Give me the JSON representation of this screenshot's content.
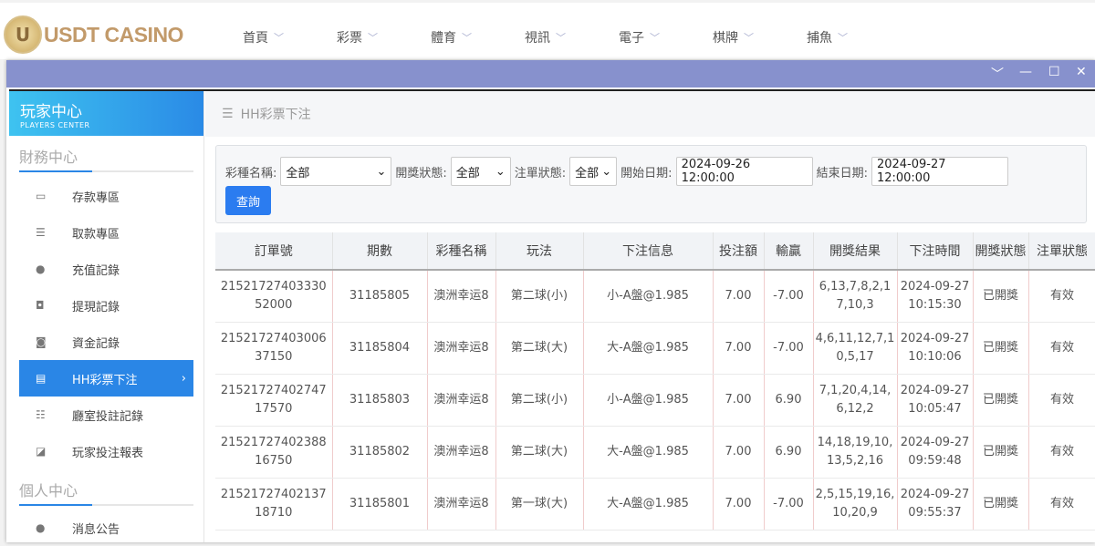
{
  "header": {
    "logo_text": "USDT CASINO",
    "nav": [
      "首頁",
      "彩票",
      "體育",
      "視訊",
      "電子",
      "棋牌",
      "捕魚"
    ]
  },
  "window": {
    "controls": [
      "chevron-down",
      "minimize",
      "maximize",
      "close"
    ]
  },
  "sidebar": {
    "title": "玩家中心",
    "subtitle": "PLAYERS CENTER",
    "section1": "財務中心",
    "items": [
      {
        "label": "存款專區",
        "icon": "card-icon"
      },
      {
        "label": "取款專區",
        "icon": "hand-money-icon"
      },
      {
        "label": "充值記錄",
        "icon": "money-bag-icon"
      },
      {
        "label": "提現記錄",
        "icon": "wallet-icon"
      },
      {
        "label": "資金記錄",
        "icon": "piggy-icon"
      },
      {
        "label": "HH彩票下注",
        "icon": "list-icon",
        "active": true
      },
      {
        "label": "廳室投註記錄",
        "icon": "bullet-list-icon"
      },
      {
        "label": "玩家投注報表",
        "icon": "chart-icon"
      }
    ],
    "section2": "個人中心",
    "items2": [
      {
        "label": "消息公告",
        "icon": "user-icon"
      }
    ]
  },
  "breadcrumb": "HH彩票下注",
  "filter": {
    "lottery_label": "彩種名稱:",
    "lottery_value": "全部",
    "draw_label": "開獎狀態:",
    "draw_value": "全部",
    "bet_label": "注單狀態:",
    "bet_value": "全部",
    "start_label": "開始日期:",
    "start_value": "2024-09-26 12:00:00",
    "end_label": "結束日期:",
    "end_value": "2024-09-27 12:00:00",
    "query": "查詢"
  },
  "table": {
    "headers": [
      "訂單號",
      "期數",
      "彩種名稱",
      "玩法",
      "下注信息",
      "投注額",
      "輸贏",
      "開獎結果",
      "下注時間",
      "開獎狀態",
      "注單狀態"
    ],
    "rows": [
      [
        "2152172740333052000",
        "31185805",
        "澳洲幸运8",
        "第二球(小)",
        "小-A盤@1.985",
        "7.00",
        "-7.00",
        "6,13,7,8,2,17,10,3",
        "2024-09-27 10:15:30",
        "已開獎",
        "有效"
      ],
      [
        "2152172740300637150",
        "31185804",
        "澳洲幸运8",
        "第二球(大)",
        "大-A盤@1.985",
        "7.00",
        "-7.00",
        "4,6,11,12,7,10,5,17",
        "2024-09-27 10:10:06",
        "已開獎",
        "有效"
      ],
      [
        "2152172740274717570",
        "31185803",
        "澳洲幸运8",
        "第二球(小)",
        "小-A盤@1.985",
        "7.00",
        "6.90",
        "7,1,20,4,14,6,12,2",
        "2024-09-27 10:05:47",
        "已開獎",
        "有效"
      ],
      [
        "2152172740238816750",
        "31185802",
        "澳洲幸运8",
        "第二球(大)",
        "大-A盤@1.985",
        "7.00",
        "6.90",
        "14,18,19,10,13,5,2,16",
        "2024-09-27 09:59:48",
        "已開獎",
        "有效"
      ],
      [
        "2152172740213718710",
        "31185801",
        "澳洲幸运8",
        "第一球(大)",
        "大-A盤@1.985",
        "7.00",
        "-7.00",
        "2,5,15,19,16,10,20,9",
        "2024-09-27 09:55:37",
        "已開獎",
        "有效"
      ]
    ]
  }
}
